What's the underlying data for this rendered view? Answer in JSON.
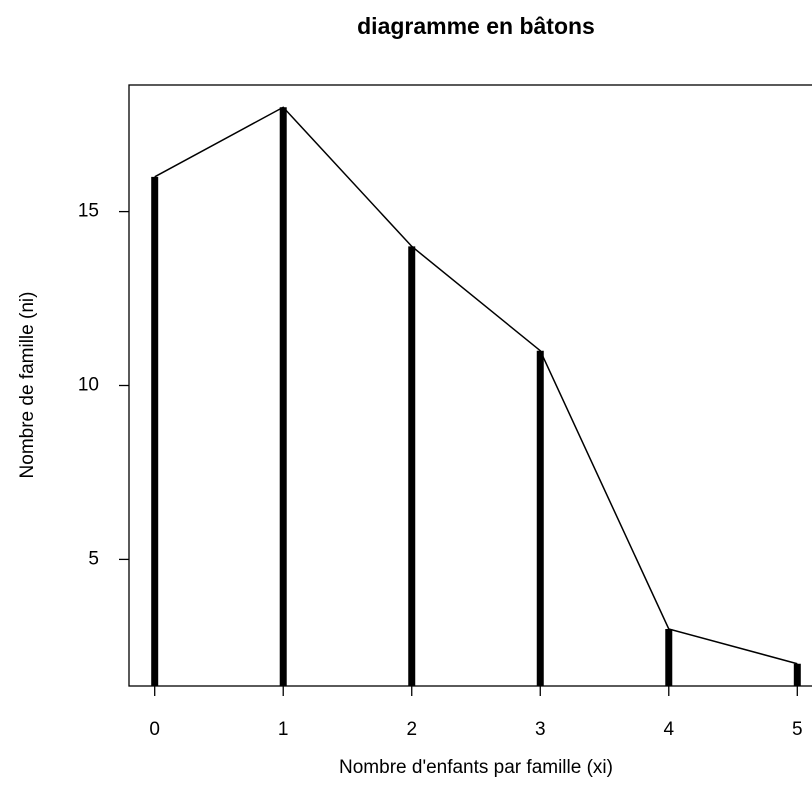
{
  "chart_data": {
    "type": "bar",
    "title": "diagramme en bâtons",
    "x_label": "Nombre d'enfants par famille (xi)",
    "y_label": "Nombre de famille (ni)",
    "x": [
      0,
      1,
      2,
      3,
      4,
      5
    ],
    "values": [
      16,
      18,
      14,
      11,
      3,
      2
    ],
    "color": "#000000",
    "connect_line": true,
    "xlim": [
      -0.2,
      5.2
    ],
    "xticks": [
      0,
      1,
      2,
      3,
      4,
      5
    ],
    "ylim": [
      1.36,
      18.64
    ],
    "yticks": [
      5,
      10,
      15
    ],
    "grid": false
  }
}
